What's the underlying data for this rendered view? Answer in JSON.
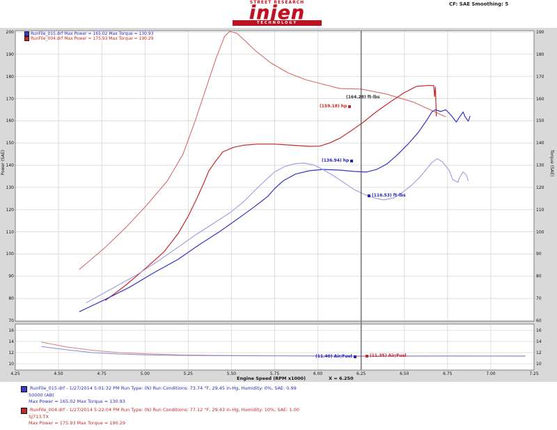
{
  "logo": {
    "tagline": "STREET RESEARCH",
    "name": "injen",
    "subbar": "TECHNOLOGY"
  },
  "header": {
    "correction": "CF: SAE   Smoothing: 5"
  },
  "plot_legend": {
    "blue": "RunFile_015.drf  Max Power = 165.02    Max Torque = 130.93",
    "red": "RunFile_004.drf  Max Power = 175.93    Max Torque = 190.29"
  },
  "cursor_labels": {
    "red_power": "(159.18) hp",
    "red_torque": "(164.28) ft-lbs",
    "blue_power": "(136.94) hp",
    "blue_torque": "(116.53) ft-lbs",
    "blue_af": "(11.40) Air/Fuel",
    "red_af": "(11.35) Air/Fuel",
    "x_value": "X = 6.250"
  },
  "axis_titles": {
    "left": "Power (SAE)",
    "right": "Torque (SAE)",
    "x": "Engine Speed (RPM x1000)"
  },
  "bottom_legend": [
    {
      "color": "blue",
      "line1": "RunFile_015.drf - 1/27/2014 5:01:32 PM  Run Type: (N)  Run Conditions: 73.74 °F, 29.45 in-Hg,  Humidity: 0%, SAE: 0.99",
      "line2": "50000 (AB)",
      "line3": "Max Power = 165.02  Max Torque = 130.93"
    },
    {
      "color": "red",
      "line1": "RunFile_004.drf - 1/27/2014 5:22:04 PM  Run Type: (N)  Run Conditions: 77.12 °F, 29.43 in-Hg,  Humidity: 10%, SAE: 1.00",
      "line2": "SJ713.TX",
      "line3": "Max Power = 175.93  Max Torque = 190.29"
    }
  ],
  "chart_data": {
    "type": "line",
    "title": "Dynojet run comparison (Injen intake dyno chart)",
    "xlabel": "Engine Speed (RPM x1000)",
    "x_range": [
      4.25,
      7.25
    ],
    "x_ticks": [
      4.25,
      4.5,
      4.75,
      5.0,
      5.25,
      5.5,
      5.75,
      6.0,
      6.25,
      6.5,
      6.75,
      7.0,
      7.25
    ],
    "y_left": {
      "label": "Power (SAE)",
      "range": [
        70,
        200
      ],
      "ticks": [
        200,
        190,
        180,
        170,
        160,
        150,
        140,
        130,
        120,
        110,
        100,
        90,
        80,
        70
      ]
    },
    "y_right": {
      "label": "Torque (SAE)",
      "range": [
        60,
        190
      ],
      "ticks": [
        190,
        180,
        170,
        160,
        150,
        140,
        130,
        120,
        110,
        100,
        90,
        80,
        70,
        60
      ]
    },
    "cursor_x": 6.25,
    "grid": true,
    "series": [
      {
        "name": "red_torque",
        "axis": "right",
        "color": "#d96a6a",
        "width": 1.1,
        "points": [
          [
            4.62,
            83
          ],
          [
            4.77,
            93
          ],
          [
            4.89,
            102
          ],
          [
            5.01,
            112
          ],
          [
            5.13,
            123
          ],
          [
            5.22,
            135
          ],
          [
            5.29,
            150
          ],
          [
            5.35,
            164
          ],
          [
            5.41,
            178
          ],
          [
            5.46,
            188
          ],
          [
            5.49,
            190.3
          ],
          [
            5.53,
            189.5
          ],
          [
            5.58,
            186
          ],
          [
            5.64,
            181.5
          ],
          [
            5.73,
            176
          ],
          [
            5.83,
            171.5
          ],
          [
            5.93,
            168.5
          ],
          [
            6.01,
            166.9
          ],
          [
            6.13,
            164.5
          ],
          [
            6.25,
            164.3
          ],
          [
            6.4,
            162.0
          ],
          [
            6.55,
            158.5
          ],
          [
            6.66,
            154.6
          ],
          [
            6.74,
            151.8
          ]
        ]
      },
      {
        "name": "red_power",
        "axis": "left",
        "color": "#c62828",
        "width": 1.2,
        "points": [
          [
            4.77,
            79
          ],
          [
            4.89,
            86
          ],
          [
            5.01,
            94
          ],
          [
            5.11,
            101
          ],
          [
            5.19,
            109
          ],
          [
            5.25,
            117
          ],
          [
            5.3,
            125
          ],
          [
            5.34,
            132
          ],
          [
            5.37,
            137.5
          ],
          [
            5.41,
            142
          ],
          [
            5.45,
            146
          ],
          [
            5.51,
            148
          ],
          [
            5.57,
            149
          ],
          [
            5.65,
            149.5
          ],
          [
            5.75,
            149.5
          ],
          [
            5.85,
            149
          ],
          [
            5.95,
            148.5
          ],
          [
            6.01,
            148.6
          ],
          [
            6.07,
            150.1
          ],
          [
            6.13,
            152.3
          ],
          [
            6.19,
            155.4
          ],
          [
            6.26,
            159.2
          ],
          [
            6.34,
            164.2
          ],
          [
            6.42,
            168.6
          ],
          [
            6.5,
            172.7
          ],
          [
            6.57,
            175.5
          ],
          [
            6.63,
            175.9
          ],
          [
            6.67,
            175.9
          ],
          [
            6.675,
            171.0
          ],
          [
            6.68,
            175.2
          ],
          [
            6.685,
            162.0
          ]
        ]
      },
      {
        "name": "blue_power",
        "axis": "left",
        "color": "#3434c4",
        "width": 1.2,
        "points": [
          [
            4.62,
            74
          ],
          [
            4.77,
            79.5
          ],
          [
            4.91,
            85
          ],
          [
            5.05,
            91.5
          ],
          [
            5.19,
            97.5
          ],
          [
            5.31,
            104
          ],
          [
            5.43,
            110
          ],
          [
            5.53,
            115.5
          ],
          [
            5.61,
            120
          ],
          [
            5.67,
            123.5
          ],
          [
            5.71,
            126
          ],
          [
            5.75,
            129.5
          ],
          [
            5.8,
            133
          ],
          [
            5.87,
            136
          ],
          [
            5.95,
            137.5
          ],
          [
            6.03,
            138.1
          ],
          [
            6.13,
            137.8
          ],
          [
            6.21,
            137.2
          ],
          [
            6.28,
            136.9
          ],
          [
            6.34,
            138.1
          ],
          [
            6.4,
            140.6
          ],
          [
            6.46,
            144.7
          ],
          [
            6.52,
            149.4
          ],
          [
            6.58,
            154.7
          ],
          [
            6.63,
            160.3
          ],
          [
            6.66,
            164.1
          ],
          [
            6.68,
            165.0
          ],
          [
            6.71,
            164.2
          ],
          [
            6.74,
            165.0
          ],
          [
            6.77,
            162.5
          ],
          [
            6.8,
            159.5
          ],
          [
            6.82,
            161.8
          ],
          [
            6.84,
            164.0
          ],
          [
            6.85,
            162.0
          ],
          [
            6.87,
            159.8
          ],
          [
            6.88,
            162.2
          ]
        ]
      },
      {
        "name": "blue_torque",
        "axis": "right",
        "color": "#9b9be0",
        "width": 1.1,
        "points": [
          [
            4.66,
            68
          ],
          [
            4.8,
            74
          ],
          [
            4.95,
            80.5
          ],
          [
            5.07,
            86.5
          ],
          [
            5.19,
            93
          ],
          [
            5.29,
            98.5
          ],
          [
            5.39,
            103.5
          ],
          [
            5.49,
            108.5
          ],
          [
            5.57,
            113.5
          ],
          [
            5.64,
            119
          ],
          [
            5.7,
            123.5
          ],
          [
            5.75,
            127
          ],
          [
            5.81,
            129.5
          ],
          [
            5.87,
            130.7
          ],
          [
            5.92,
            131.0
          ],
          [
            5.98,
            130.0
          ],
          [
            6.03,
            128.0
          ],
          [
            6.09,
            125.3
          ],
          [
            6.15,
            122.2
          ],
          [
            6.21,
            119.0
          ],
          [
            6.28,
            116.5
          ],
          [
            6.34,
            115.0
          ],
          [
            6.38,
            114.4
          ],
          [
            6.44,
            115.3
          ],
          [
            6.49,
            117.8
          ],
          [
            6.54,
            120.9
          ],
          [
            6.59,
            124.7
          ],
          [
            6.63,
            128.4
          ],
          [
            6.66,
            131.3
          ],
          [
            6.69,
            132.9
          ],
          [
            6.72,
            131.6
          ],
          [
            6.76,
            127.6
          ],
          [
            6.78,
            123.5
          ],
          [
            6.81,
            122.3
          ],
          [
            6.82,
            124.5
          ],
          [
            6.84,
            127.0
          ],
          [
            6.86,
            125.4
          ],
          [
            6.87,
            122.9
          ]
        ]
      }
    ],
    "strip": {
      "ylabel": "Air/Fuel",
      "y_range": [
        9,
        17
      ],
      "ticks": [
        16,
        14,
        12,
        10
      ],
      "series": [
        {
          "name": "red_af",
          "color": "#d98080",
          "width": 1,
          "points": [
            [
              4.4,
              13.9
            ],
            [
              4.55,
              13.0
            ],
            [
              4.7,
              12.4
            ],
            [
              4.85,
              12.0
            ],
            [
              5.0,
              11.8
            ],
            [
              5.2,
              11.6
            ],
            [
              5.45,
              11.5
            ],
            [
              5.75,
              11.45
            ],
            [
              6.0,
              11.4
            ],
            [
              6.25,
              11.35
            ],
            [
              6.5,
              11.36
            ],
            [
              6.75,
              11.38
            ],
            [
              7.0,
              11.37
            ],
            [
              7.2,
              11.36
            ]
          ]
        },
        {
          "name": "blue_af",
          "color": "#8a8ad8",
          "width": 1,
          "points": [
            [
              4.4,
              13.1
            ],
            [
              4.55,
              12.5
            ],
            [
              4.7,
              12.0
            ],
            [
              4.85,
              11.75
            ],
            [
              5.0,
              11.6
            ],
            [
              5.2,
              11.5
            ],
            [
              5.45,
              11.45
            ],
            [
              5.75,
              11.42
            ],
            [
              6.0,
              11.41
            ],
            [
              6.25,
              11.4
            ],
            [
              6.5,
              11.41
            ],
            [
              6.75,
              11.42
            ],
            [
              7.0,
              11.41
            ],
            [
              7.2,
              11.4
            ]
          ]
        }
      ]
    }
  }
}
